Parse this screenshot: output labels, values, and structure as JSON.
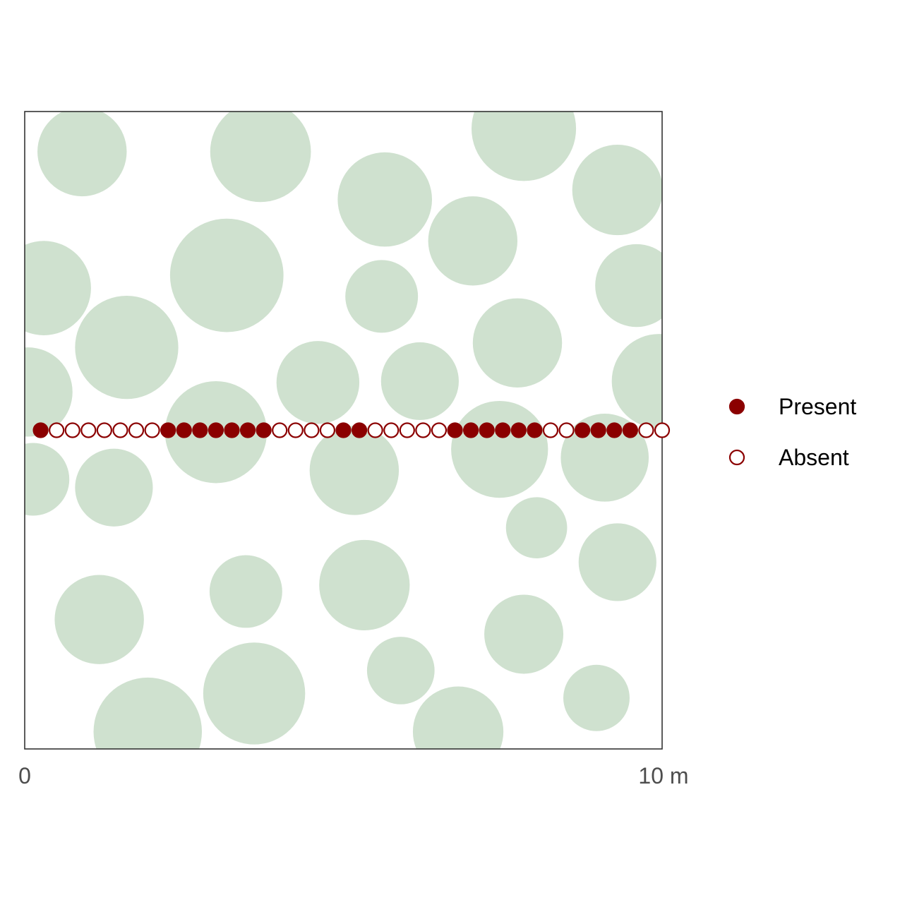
{
  "chart_data": {
    "type": "scatter",
    "xlim": [
      0,
      10
    ],
    "ylim": [
      0,
      10
    ],
    "x_tick_labels": [
      {
        "value": 0,
        "label": "0"
      },
      {
        "value": 10,
        "label": "10 m"
      }
    ],
    "grid": false,
    "legend_placement": "right",
    "colors": {
      "canopy": "#cfe1cf",
      "point": "#8b0000",
      "frame": "#333333"
    },
    "legend": [
      {
        "key": "present",
        "label": "Present",
        "fill": true
      },
      {
        "key": "absent",
        "label": "Absent",
        "fill": false
      }
    ],
    "canopies": [
      {
        "x": 0.9,
        "y": 9.37,
        "r": 0.7
      },
      {
        "x": 3.7,
        "y": 9.37,
        "r": 0.79
      },
      {
        "x": 5.65,
        "y": 8.62,
        "r": 0.74
      },
      {
        "x": 7.83,
        "y": 9.73,
        "r": 0.82
      },
      {
        "x": 9.3,
        "y": 8.77,
        "r": 0.71
      },
      {
        "x": 7.03,
        "y": 7.97,
        "r": 0.7
      },
      {
        "x": 0.3,
        "y": 7.23,
        "r": 0.74
      },
      {
        "x": 3.17,
        "y": 7.43,
        "r": 0.89
      },
      {
        "x": 5.6,
        "y": 7.1,
        "r": 0.57
      },
      {
        "x": 9.6,
        "y": 7.27,
        "r": 0.65
      },
      {
        "x": 1.6,
        "y": 6.3,
        "r": 0.81
      },
      {
        "x": 7.73,
        "y": 6.37,
        "r": 0.7
      },
      {
        "x": 0.05,
        "y": 5.6,
        "r": 0.7
      },
      {
        "x": 4.6,
        "y": 5.75,
        "r": 0.65
      },
      {
        "x": 6.2,
        "y": 5.77,
        "r": 0.61
      },
      {
        "x": 9.95,
        "y": 5.77,
        "r": 0.74
      },
      {
        "x": 3.0,
        "y": 4.97,
        "r": 0.8
      },
      {
        "x": 5.17,
        "y": 4.37,
        "r": 0.7
      },
      {
        "x": 7.45,
        "y": 4.7,
        "r": 0.76
      },
      {
        "x": 9.1,
        "y": 4.57,
        "r": 0.69
      },
      {
        "x": 0.13,
        "y": 4.23,
        "r": 0.57
      },
      {
        "x": 1.4,
        "y": 4.1,
        "r": 0.61
      },
      {
        "x": 8.03,
        "y": 3.47,
        "r": 0.48
      },
      {
        "x": 9.3,
        "y": 2.93,
        "r": 0.61
      },
      {
        "x": 3.47,
        "y": 2.47,
        "r": 0.57
      },
      {
        "x": 5.33,
        "y": 2.57,
        "r": 0.71
      },
      {
        "x": 1.17,
        "y": 2.03,
        "r": 0.7
      },
      {
        "x": 7.83,
        "y": 1.8,
        "r": 0.62
      },
      {
        "x": 5.9,
        "y": 1.23,
        "r": 0.53
      },
      {
        "x": 3.6,
        "y": 0.87,
        "r": 0.8
      },
      {
        "x": 1.93,
        "y": 0.27,
        "r": 0.85
      },
      {
        "x": 6.8,
        "y": 0.27,
        "r": 0.71
      },
      {
        "x": 8.97,
        "y": 0.8,
        "r": 0.52
      }
    ],
    "transect": {
      "y": 5.0,
      "points": [
        {
          "x": 0.25,
          "present": true
        },
        {
          "x": 0.5,
          "present": false
        },
        {
          "x": 0.75,
          "present": false
        },
        {
          "x": 1.0,
          "present": false
        },
        {
          "x": 1.25,
          "present": false
        },
        {
          "x": 1.5,
          "present": false
        },
        {
          "x": 1.75,
          "present": false
        },
        {
          "x": 2.0,
          "present": false
        },
        {
          "x": 2.25,
          "present": true
        },
        {
          "x": 2.5,
          "present": true
        },
        {
          "x": 2.75,
          "present": true
        },
        {
          "x": 3.0,
          "present": true
        },
        {
          "x": 3.25,
          "present": true
        },
        {
          "x": 3.5,
          "present": true
        },
        {
          "x": 3.75,
          "present": true
        },
        {
          "x": 4.0,
          "present": false
        },
        {
          "x": 4.25,
          "present": false
        },
        {
          "x": 4.5,
          "present": false
        },
        {
          "x": 4.75,
          "present": false
        },
        {
          "x": 5.0,
          "present": true
        },
        {
          "x": 5.25,
          "present": true
        },
        {
          "x": 5.5,
          "present": false
        },
        {
          "x": 5.75,
          "present": false
        },
        {
          "x": 6.0,
          "present": false
        },
        {
          "x": 6.25,
          "present": false
        },
        {
          "x": 6.5,
          "present": false
        },
        {
          "x": 6.75,
          "present": true
        },
        {
          "x": 7.0,
          "present": true
        },
        {
          "x": 7.25,
          "present": true
        },
        {
          "x": 7.5,
          "present": true
        },
        {
          "x": 7.75,
          "present": true
        },
        {
          "x": 8.0,
          "present": true
        },
        {
          "x": 8.25,
          "present": false
        },
        {
          "x": 8.5,
          "present": false
        },
        {
          "x": 8.75,
          "present": true
        },
        {
          "x": 9.0,
          "present": true
        },
        {
          "x": 9.25,
          "present": true
        },
        {
          "x": 9.5,
          "present": true
        },
        {
          "x": 9.75,
          "present": false
        },
        {
          "x": 10.0,
          "present": false
        }
      ]
    }
  }
}
